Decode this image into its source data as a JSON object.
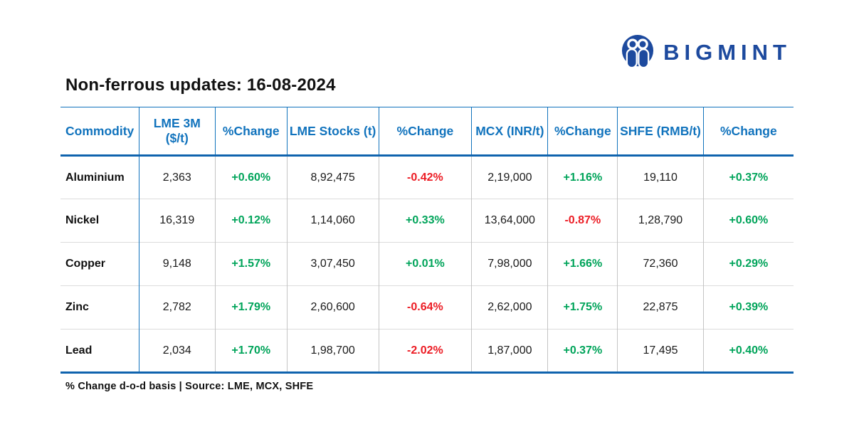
{
  "brand": {
    "name": "BIGMINT"
  },
  "title": "Non-ferrous updates: 16-08-2024",
  "chart_data": {
    "type": "table",
    "title": "Non-ferrous updates: 16-08-2024",
    "columns": [
      "Commodity",
      "LME 3M ($/t)",
      "%Change",
      "LME Stocks (t)",
      "%Change",
      "MCX (INR/t)",
      "%Change",
      "SHFE (RMB/t)",
      "%Change"
    ],
    "rows": [
      {
        "commodity": "Aluminium",
        "values": [
          "2,363",
          "+0.60%",
          "8,92,475",
          "-0.42%",
          "2,19,000",
          "+1.16%",
          "19,110",
          "+0.37%"
        ]
      },
      {
        "commodity": "Nickel",
        "values": [
          "16,319",
          "+0.12%",
          "1,14,060",
          "+0.33%",
          "13,64,000",
          "-0.87%",
          "1,28,790",
          "+0.60%"
        ]
      },
      {
        "commodity": "Copper",
        "values": [
          "9,148",
          "+1.57%",
          "3,07,450",
          "+0.01%",
          "7,98,000",
          "+1.66%",
          "72,360",
          "+0.29%"
        ]
      },
      {
        "commodity": "Zinc",
        "values": [
          "2,782",
          "+1.79%",
          "2,60,600",
          "-0.64%",
          "2,62,000",
          "+1.75%",
          "22,875",
          "+0.39%"
        ]
      },
      {
        "commodity": "Lead",
        "values": [
          "2,034",
          "+1.70%",
          "1,98,700",
          "-2.02%",
          "1,87,000",
          "+0.37%",
          "17,495",
          "+0.40%"
        ]
      }
    ]
  },
  "footer": {
    "note": "% Change d-o-d basis | Source: LME, MCX, SHFE"
  },
  "colors": {
    "positive": "#00A45A",
    "negative": "#EC1C24",
    "header_blue": "#1173BD",
    "border_blue": "#0F63AE",
    "brand_navy": "#1D4A9E"
  }
}
